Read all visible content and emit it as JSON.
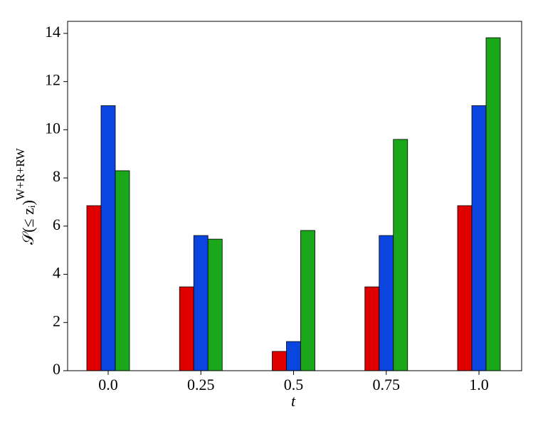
{
  "chart_data": {
    "type": "bar",
    "ylabel": {
      "main": "𝒮(≤ zᵢ)",
      "sup": "W+R+RW"
    },
    "xlabel": "t",
    "categories": [
      "0.0",
      "0.25",
      "0.5",
      "0.75",
      "1.0"
    ],
    "series": [
      {
        "color": "#e00000",
        "values": [
          6.85,
          3.48,
          0.8,
          3.48,
          6.85
        ]
      },
      {
        "color": "#0a45e0",
        "values": [
          11.0,
          5.61,
          1.21,
          5.61,
          11.0
        ]
      },
      {
        "color": "#1aa71a",
        "values": [
          8.3,
          5.46,
          5.82,
          9.6,
          13.82
        ]
      }
    ],
    "ylim": [
      0,
      14.5
    ],
    "yticks": [
      0,
      2,
      4,
      6,
      8,
      10,
      12,
      14
    ],
    "grid": false
  }
}
